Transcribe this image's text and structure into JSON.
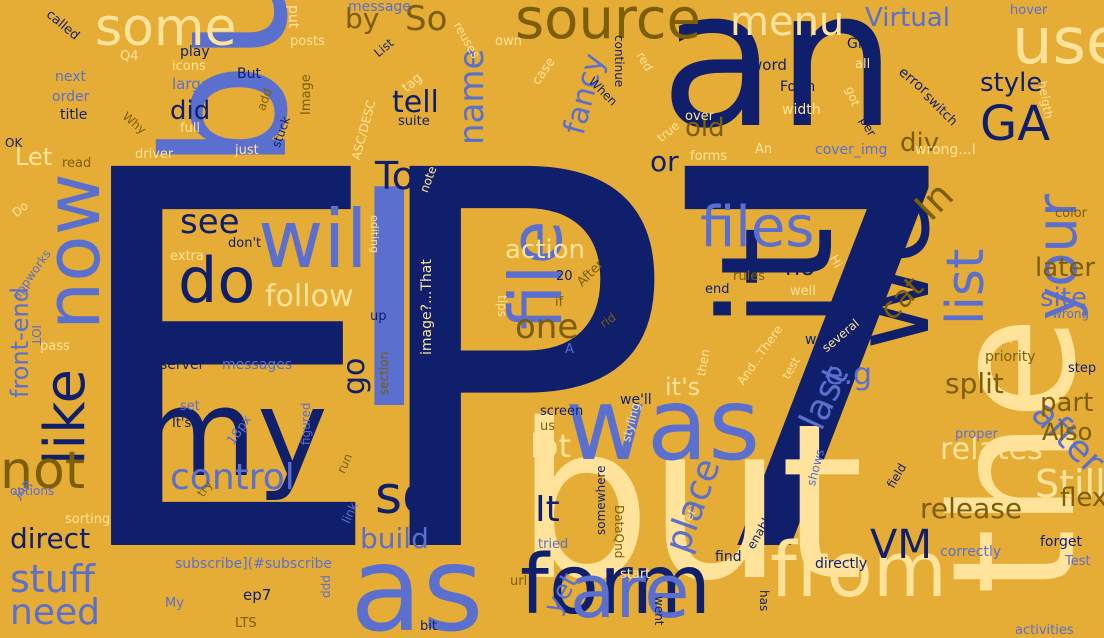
{
  "cloud": {
    "colors": {
      "background": "#e5ad35",
      "navy": "#0f1f6b",
      "blue": "#5b6fce",
      "cream": "#ffe39a",
      "olive": "#7d5e08"
    },
    "words": {
      "ep7": "EP7",
      "i": "I",
      "building": "building",
      "an": "an",
      "use": "use",
      "some": "some",
      "source": "source",
      "menu": "menu",
      "it": "it",
      "but": "but",
      "was": "was",
      "my": "my",
      "form": "form",
      "as": "as",
      "are": "are",
      "from": "from",
      "the": "the",
      "now": "now",
      "like": "like",
      "not": "not",
      "will": "will",
      "do": "do",
      "file": "file",
      "files": "files",
      "we": "we",
      "your": "your",
      "list": "list",
      "after": "after",
      "so": "so",
      "control": "control",
      "stuff": "stuff",
      "need": "need",
      "ga": "GA",
      "vm": "VM",
      "still": "Still",
      "release": "release",
      "relates": "relates",
      "to": "To",
      "see": "see",
      "follow": "follow",
      "one": "one",
      "action": "action",
      "in": "In",
      "cat": "cat",
      "site": "site",
      "later": "later",
      "style": "style",
      "part": "part",
      "also": "Also",
      "flex": "flex",
      "split": "split",
      "last": "last",
      "eg": "e.g",
      "its": "it's",
      "place": "place",
      "lot": "lot",
      "it_cap": "It",
      "build": "build",
      "direct": "direct",
      "fancy": "fancy",
      "name": "name",
      "old": "old",
      "did": "did",
      "tell": "tell",
      "virtual": "Virtual",
      "by": "by",
      "so2": "So",
      "front_end": "front-end",
      "go": "go",
      "div": "div",
      "or": "or",
      "no": "no",
      "yet": "yet",
      "lets": "Let",
      "ep7_small": "ep7",
      "called": "called",
      "put": "put",
      "message": "message",
      "hover": "hover",
      "grid": "Grid",
      "word": "word",
      "form_small": "Form",
      "error": "error",
      "switch": "switch",
      "width": "width",
      "an_small": "An",
      "cover_img": "cover_img",
      "wrong": "wrong...I",
      "color": "color",
      "next": "next",
      "order": "order",
      "title": "title",
      "ok": "OK",
      "read": "read",
      "large": "large",
      "play": "play",
      "icons": "icons",
      "but_small": "But",
      "q4": "Q4",
      "image": "Image",
      "posts": "posts",
      "suite": "suite",
      "full": "full",
      "just": "just",
      "driver": "driver",
      "forms": "forms",
      "true": "true",
      "over": "over",
      "continue": "continue",
      "when": "When",
      "extra": "extra",
      "dont": "don't",
      "editing": "editing",
      "pass": "pass",
      "server": "server",
      "messages": "messages",
      "set": "set",
      "its_cap": "It's",
      "18px": "18px",
      "figured": "figured",
      "options": "options",
      "sorting": "sorting",
      "subscribe": "subscribe](#subscribe",
      "my_small": "My",
      "lts": "LTS",
      "bit": "bit",
      "url": "url",
      "start": "start",
      "went": "went",
      "has": "has",
      "find": "find",
      "directly": "directly",
      "correctly": "correctly",
      "forget": "forget",
      "activities": "activities",
      "field": "field",
      "priority": "priority",
      "ask": "ask",
      "step": "step",
      "proper": "proper",
      "were": "we're",
      "several": "several",
      "well": "we'll",
      "screen": "screen",
      "us": "us",
      "tried": "tried",
      "somewhere": "somewhere",
      "enable": "enable",
      "shows": "shows",
      "image_that": "image?...That",
      "section": "section",
      "up": "up",
      "rid": "rid",
      "end": "end",
      "rules": "rules",
      "well2": "well",
      "and_there": "And...There",
      "then": "then",
      "test": "test",
      "if": "if",
      "20": "20",
      "tips": "tips",
      "after_small": "After",
      "jar": "JAR",
      "try": "try",
      "run": "run",
      "link": "link",
      "appworks": "appworks",
      "do_small": "Do",
      "why": "Why",
      "add": "add",
      "stuck": "stuck",
      "tag": "tag",
      "asc_desc": "ASC/DESC",
      "reuses": "reuses",
      "own": "own",
      "case": "case",
      "red": "red",
      "got": "got",
      "per": "per",
      "all": "all",
      "heigth": "heigth",
      "wrong_small": "wrong",
      "note": "note",
      "list_small": "List",
      "iot": "IOT",
      "dataqnd": "DataQnd",
      "let_small": "let",
      "a_small": "A",
      "hi": "Hi",
      "styling": "styling",
      "test_cap": "Test",
      "ddd": "ddd"
    }
  }
}
